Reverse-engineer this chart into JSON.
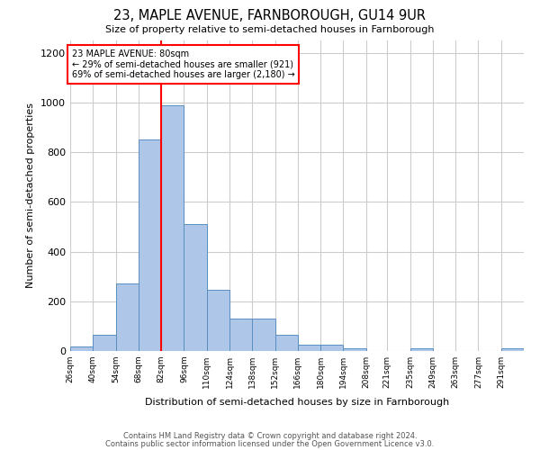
{
  "title": "23, MAPLE AVENUE, FARNBOROUGH, GU14 9UR",
  "subtitle": "Size of property relative to semi-detached houses in Farnborough",
  "xlabel": "Distribution of semi-detached houses by size in Farnborough",
  "ylabel": "Number of semi-detached properties",
  "footnote1": "Contains HM Land Registry data © Crown copyright and database right 2024.",
  "footnote2": "Contains public sector information licensed under the Open Government Licence v3.0.",
  "annotation_title": "23 MAPLE AVENUE: 80sqm",
  "annotation_line1": "← 29% of semi-detached houses are smaller (921)",
  "annotation_line2": "69% of semi-detached houses are larger (2,180) →",
  "property_value": 80,
  "bin_edges": [
    26,
    40,
    54,
    68,
    82,
    96,
    110,
    124,
    138,
    152,
    166,
    180,
    194,
    208,
    221,
    235,
    249,
    263,
    277,
    291,
    305
  ],
  "bar_heights": [
    18,
    65,
    270,
    850,
    990,
    510,
    245,
    130,
    130,
    65,
    25,
    25,
    10,
    0,
    0,
    10,
    0,
    0,
    0,
    10
  ],
  "bar_color": "#aec6e8",
  "bar_edge_color": "#5a8fc0",
  "red_line_x": 82,
  "ylim": [
    0,
    1250
  ],
  "yticks": [
    0,
    200,
    400,
    600,
    800,
    1000,
    1200
  ],
  "annotation_box_color": "white",
  "annotation_box_edge": "red",
  "grid_color": "#cccccc",
  "background_color": "white"
}
